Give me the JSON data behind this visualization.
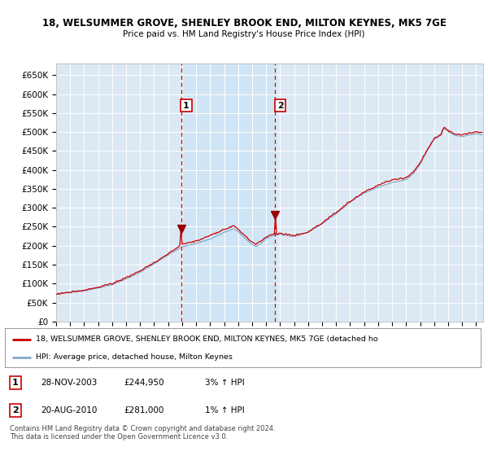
{
  "title": "18, WELSUMMER GROVE, SHENLEY BROOK END, MILTON KEYNES, MK5 7GE",
  "subtitle": "Price paid vs. HM Land Registry's House Price Index (HPI)",
  "background_color": "#ffffff",
  "plot_bg_color": "#dce9f5",
  "plot_bg_between": "#cce0f0",
  "grid_color": "#ffffff",
  "ylim": [
    0,
    680000
  ],
  "yticks": [
    0,
    50000,
    100000,
    150000,
    200000,
    250000,
    300000,
    350000,
    400000,
    450000,
    500000,
    550000,
    600000,
    650000
  ],
  "ytick_labels": [
    "£0",
    "£50K",
    "£100K",
    "£150K",
    "£200K",
    "£250K",
    "£300K",
    "£350K",
    "£400K",
    "£450K",
    "£500K",
    "£550K",
    "£600K",
    "£650K"
  ],
  "sale1_date": 2003.92,
  "sale1_price": 244950,
  "sale1_label": "1",
  "sale2_date": 2010.64,
  "sale2_price": 281000,
  "sale2_label": "2",
  "line_color_red": "#cc0000",
  "line_color_blue": "#88aacc",
  "vline_color": "#cc0000",
  "sale_marker_color": "#990000",
  "legend_line1": "18, WELSUMMER GROVE, SHENLEY BROOK END, MILTON KEYNES, MK5 7GE (detached ho",
  "legend_line2": "HPI: Average price, detached house, Milton Keynes",
  "table_row1": [
    "1",
    "28-NOV-2003",
    "£244,950",
    "3% ↑ HPI"
  ],
  "table_row2": [
    "2",
    "20-AUG-2010",
    "£281,000",
    "1% ↑ HPI"
  ],
  "footnote": "Contains HM Land Registry data © Crown copyright and database right 2024.\nThis data is licensed under the Open Government Licence v3.0.",
  "xlim_start": 1995.0,
  "xlim_end": 2025.5
}
